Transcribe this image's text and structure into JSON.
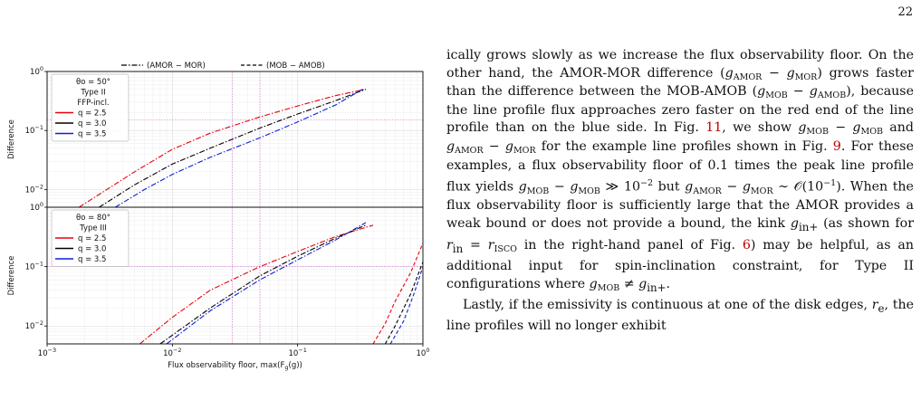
{
  "page_number": "22",
  "figure": {
    "legend_top": [
      "(AMOR − MOR)",
      "(MOB − AMOB)"
    ],
    "xlabel": "Flux observability floor, max(F_g(g))",
    "ylabel": "Difference",
    "x_tick_labels": [
      "10^-3",
      "10^-2",
      "10^-1",
      "10^0"
    ],
    "y_tick_labels": [
      "10^-2",
      "10^-1",
      "10^0"
    ],
    "colors": {
      "q2.5": "#e8000b",
      "q3.0": "#000000",
      "q3.5": "#0a1fd6",
      "ref_line": "#d57bd6"
    },
    "panels": [
      {
        "legend": [
          "θo = 50°",
          "Type II",
          "FFP-incl."
        ],
        "entries": [
          "q = 2.5",
          "q = 3.0",
          "q = 3.5"
        ]
      },
      {
        "legend": [
          "θo = 80°",
          "Type III"
        ],
        "entries": [
          "q = 2.5",
          "q = 3.0",
          "q = 3.5"
        ]
      }
    ]
  },
  "chart_data": [
    {
      "type": "line",
      "title": "",
      "xlabel": "",
      "ylabel": "Difference",
      "xscale": "log",
      "yscale": "log",
      "xlim": [
        0.001,
        1
      ],
      "ylim": [
        0.005,
        1
      ],
      "reference_lines": {
        "x": [
          0.03,
          0.05
        ],
        "y": [
          0.15
        ]
      },
      "series": [
        {
          "name": "q = 2.5",
          "style": "dash-dot",
          "x": [
            0.0018,
            0.003,
            0.005,
            0.01,
            0.02,
            0.05,
            0.1,
            0.2,
            0.35
          ],
          "y": [
            0.005,
            0.01,
            0.02,
            0.048,
            0.09,
            0.17,
            0.26,
            0.39,
            0.5
          ]
        },
        {
          "name": "q = 3.0",
          "style": "dash-dot",
          "x": [
            0.0026,
            0.005,
            0.01,
            0.02,
            0.05,
            0.1,
            0.2,
            0.35
          ],
          "y": [
            0.005,
            0.012,
            0.027,
            0.05,
            0.11,
            0.19,
            0.32,
            0.5
          ]
        },
        {
          "name": "q = 3.5",
          "style": "dash-dot",
          "x": [
            0.0035,
            0.006,
            0.01,
            0.02,
            0.05,
            0.1,
            0.2,
            0.33
          ],
          "y": [
            0.005,
            0.01,
            0.018,
            0.035,
            0.075,
            0.14,
            0.27,
            0.5
          ]
        }
      ]
    },
    {
      "type": "line",
      "title": "",
      "xlabel": "Flux observability floor, max(F_g(g))",
      "ylabel": "Difference",
      "xscale": "log",
      "yscale": "log",
      "xlim": [
        0.001,
        1
      ],
      "ylim": [
        0.005,
        1
      ],
      "reference_lines": {
        "x": [
          0.03,
          0.05
        ],
        "y": [
          0.1
        ]
      },
      "series": [
        {
          "name": "q = 2.5 (AMOR − MOR)",
          "style": "dash-dot",
          "x": [
            0.0055,
            0.01,
            0.02,
            0.05,
            0.1,
            0.2,
            0.4
          ],
          "y": [
            0.005,
            0.014,
            0.04,
            0.1,
            0.18,
            0.32,
            0.5
          ]
        },
        {
          "name": "q = 3.0 (AMOR − MOR)",
          "style": "dash-dot",
          "x": [
            0.008,
            0.02,
            0.05,
            0.1,
            0.2,
            0.35
          ],
          "y": [
            0.005,
            0.02,
            0.07,
            0.15,
            0.3,
            0.5
          ]
        },
        {
          "name": "q = 3.5 (AMOR − MOR)",
          "style": "dash-dot",
          "x": [
            0.009,
            0.02,
            0.05,
            0.1,
            0.2,
            0.35
          ],
          "y": [
            0.005,
            0.018,
            0.06,
            0.13,
            0.28,
            0.55
          ]
        },
        {
          "name": "q = 2.5 (MOB − AMOB)",
          "style": "dashed",
          "x": [
            0.4,
            0.5,
            0.6,
            0.8,
            1.0
          ],
          "y": [
            0.005,
            0.011,
            0.026,
            0.08,
            0.25
          ]
        },
        {
          "name": "q = 3.0 (MOB − AMOB)",
          "style": "dashed",
          "x": [
            0.5,
            0.6,
            0.8,
            1.0
          ],
          "y": [
            0.005,
            0.01,
            0.035,
            0.12
          ]
        },
        {
          "name": "q = 3.5 (MOB − AMOB)",
          "style": "dashed",
          "x": [
            0.55,
            0.7,
            0.85,
            1.0
          ],
          "y": [
            0.005,
            0.012,
            0.035,
            0.1
          ]
        }
      ]
    }
  ]
}
